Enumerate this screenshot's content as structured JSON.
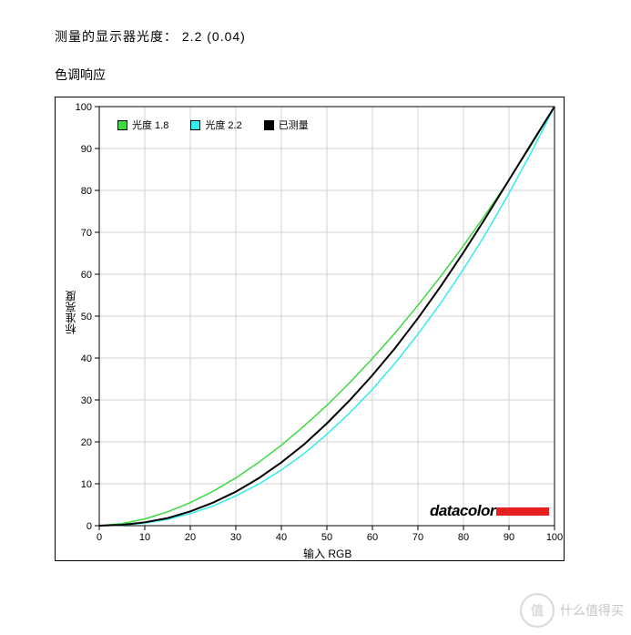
{
  "header": {
    "measured_gamma_label": "测量的显示器光度：  2.2 (0.04)",
    "section_title": "色调响应"
  },
  "chart": {
    "type": "line",
    "xlabel": "输入 RGB",
    "ylabel": "标准亮度",
    "xlim": [
      0,
      100
    ],
    "ylim": [
      0,
      100
    ],
    "xtick_step": 10,
    "ytick_step": 10,
    "background_color": "#ffffff",
    "grid_color": "#d0d0d0",
    "axis_color": "#000000",
    "series": [
      {
        "name": "光度 1.8",
        "color": "#3dd93d",
        "line_width": 1.5,
        "x": [
          0,
          5,
          10,
          15,
          20,
          25,
          30,
          35,
          40,
          45,
          50,
          55,
          60,
          65,
          70,
          75,
          80,
          85,
          90,
          95,
          100
        ],
        "y": [
          0,
          0.5,
          1.6,
          3.3,
          5.5,
          8.2,
          11.4,
          15.1,
          19.2,
          23.8,
          28.7,
          34.1,
          39.9,
          46.0,
          52.6,
          59.5,
          66.8,
          74.5,
          82.5,
          91.0,
          100
        ]
      },
      {
        "name": "光度 2.2",
        "color": "#35ecec",
        "line_width": 1.5,
        "x": [
          0,
          5,
          10,
          15,
          20,
          25,
          30,
          35,
          40,
          45,
          50,
          55,
          60,
          65,
          70,
          75,
          80,
          85,
          90,
          95,
          100
        ],
        "y": [
          0,
          0.1,
          0.6,
          1.5,
          2.9,
          4.7,
          7.1,
          9.9,
          13.3,
          17.2,
          21.8,
          26.9,
          32.5,
          38.8,
          45.7,
          53.1,
          61.2,
          69.9,
          79.3,
          89.3,
          100
        ]
      },
      {
        "name": "已测量",
        "color": "#000000",
        "line_width": 2.0,
        "x": [
          0,
          5,
          10,
          15,
          20,
          25,
          30,
          35,
          40,
          45,
          50,
          55,
          60,
          65,
          70,
          75,
          80,
          85,
          90,
          95,
          100
        ],
        "y": [
          0,
          0.2,
          0.8,
          1.8,
          3.4,
          5.5,
          8.1,
          11.3,
          15.1,
          19.4,
          24.4,
          29.9,
          35.9,
          42.4,
          49.5,
          57.1,
          65.2,
          73.7,
          82.5,
          91.3,
          100
        ]
      }
    ],
    "legend_position": "top-left"
  },
  "brand": {
    "text": "datacolor",
    "bar_color": "#e62020"
  },
  "watermark": {
    "circle_text": "值",
    "text": "什么值得买"
  }
}
